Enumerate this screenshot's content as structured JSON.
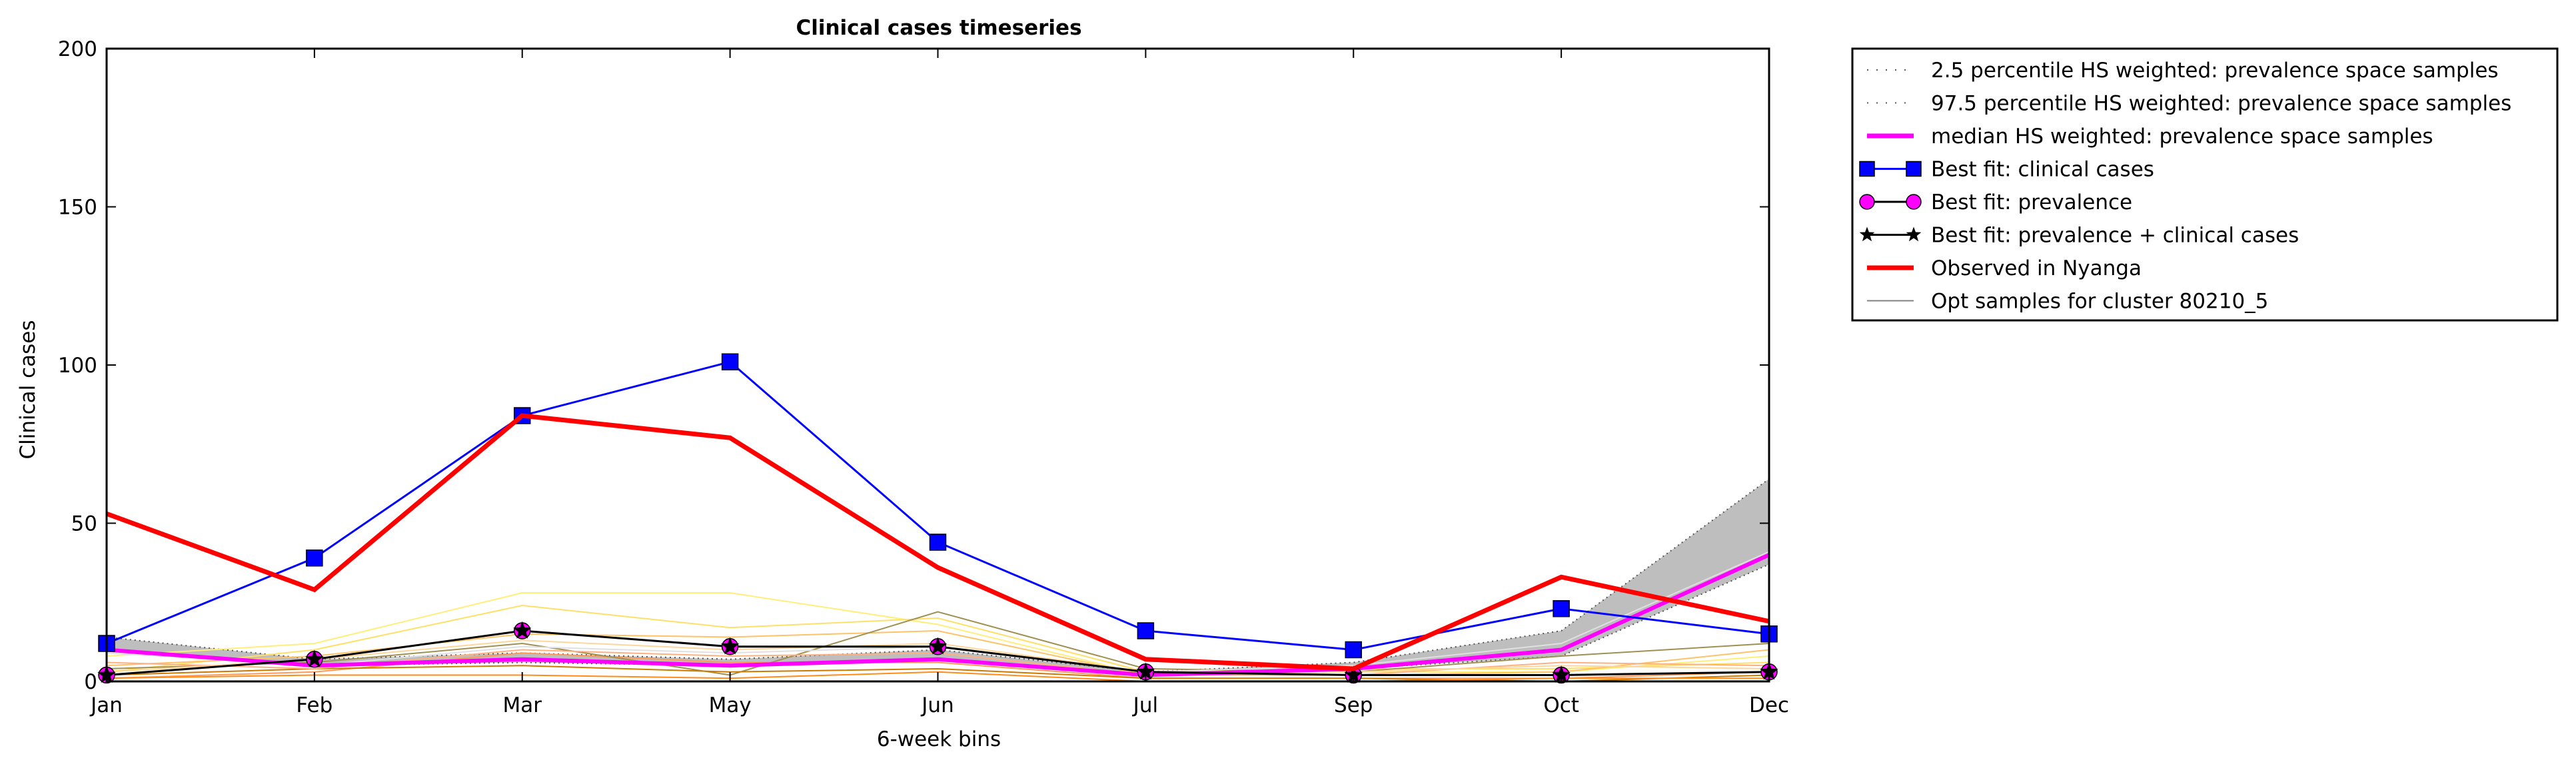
{
  "chart_data": {
    "type": "line",
    "title": "Clinical cases timeseries",
    "xlabel": "6-week bins",
    "ylabel": "Clinical cases",
    "categories": [
      "Jan",
      "Feb",
      "Mar",
      "May",
      "Jun",
      "Jul",
      "Sep",
      "Oct",
      "Dec"
    ],
    "yticks": [
      "0",
      "50",
      "100",
      "150",
      "200"
    ],
    "ylim": [
      0,
      200
    ],
    "grid": false,
    "legend_position": "outside-right",
    "legend": [
      {
        "label": "2.5 percentile HS weighted: prevalence space samples",
        "style": "dotted",
        "color": "#000000"
      },
      {
        "label": "97.5 percentile HS weighted: prevalence space samples",
        "style": "dotted",
        "color": "#000000"
      },
      {
        "label": "median HS weighted: prevalence space samples",
        "style": "thick",
        "color": "#ff00ff"
      },
      {
        "label": "Best fit: clinical cases",
        "style": "square",
        "color": "#0000ff"
      },
      {
        "label": "Best fit: prevalence",
        "style": "circle",
        "color": "#ff00ff"
      },
      {
        "label": "Best fit: prevalence + clinical cases",
        "style": "star",
        "color": "#000000"
      },
      {
        "label": "Observed in Nyanga",
        "style": "thick",
        "color": "#ff0000"
      },
      {
        "label": "Opt samples for cluster 80210_5",
        "style": "thin",
        "color": "#808080"
      }
    ],
    "band": {
      "lower": [
        10,
        5,
        6,
        5,
        7,
        2,
        4,
        8,
        37
      ],
      "upper": [
        14,
        7,
        9,
        7,
        10,
        3,
        6,
        16,
        64
      ]
    },
    "series": [
      {
        "values": [
          10,
          5,
          7,
          5,
          7,
          2,
          4,
          10,
          40
        ],
        "color": "#ff00ff",
        "kind": "median"
      },
      {
        "values": [
          12,
          39,
          84,
          101,
          44,
          16,
          10,
          23,
          15
        ],
        "color": "#0000ff",
        "kind": "clinical"
      },
      {
        "values": [
          2,
          7,
          16,
          11,
          11,
          3,
          2,
          2,
          3
        ],
        "color": "#000000",
        "kind": "prevalence"
      },
      {
        "values": [
          2,
          7,
          16,
          11,
          11,
          3,
          2,
          2,
          3
        ],
        "color": "#000000",
        "kind": "combined"
      },
      {
        "values": [
          53,
          29,
          84,
          77,
          36,
          7,
          4,
          33,
          19
        ],
        "color": "#ff0000",
        "kind": "observed"
      }
    ],
    "samples": [
      {
        "values": [
          8,
          12,
          28,
          28,
          18,
          2,
          3,
          3,
          8
        ],
        "color": "#ffef7a"
      },
      {
        "values": [
          3,
          10,
          24,
          17,
          20,
          3,
          4,
          4,
          6
        ],
        "color": "#ffe066"
      },
      {
        "values": [
          5,
          8,
          15,
          14,
          16,
          2,
          2,
          3,
          10
        ],
        "color": "#ffc266"
      },
      {
        "values": [
          1,
          3,
          9,
          6,
          6,
          1,
          1,
          1,
          3
        ],
        "color": "#ff9955"
      },
      {
        "values": [
          4,
          6,
          12,
          2,
          22,
          4,
          3,
          8,
          12
        ],
        "color": "#a09050"
      },
      {
        "values": [
          2,
          4,
          5,
          3,
          4,
          1,
          1,
          0,
          2
        ],
        "color": "#cc7a00"
      },
      {
        "values": [
          6,
          4,
          10,
          8,
          9,
          2,
          2,
          6,
          5
        ],
        "color": "#ffb080"
      },
      {
        "values": [
          3,
          7,
          13,
          10,
          12,
          3,
          3,
          5,
          4
        ],
        "color": "#ffd699"
      },
      {
        "values": [
          1,
          2,
          2,
          1,
          3,
          0,
          0,
          1,
          1
        ],
        "color": "#ff8c1a"
      },
      {
        "values": [
          9,
          5,
          11,
          9,
          11,
          3,
          5,
          12,
          41
        ],
        "color": "#e0e0e0"
      }
    ]
  }
}
